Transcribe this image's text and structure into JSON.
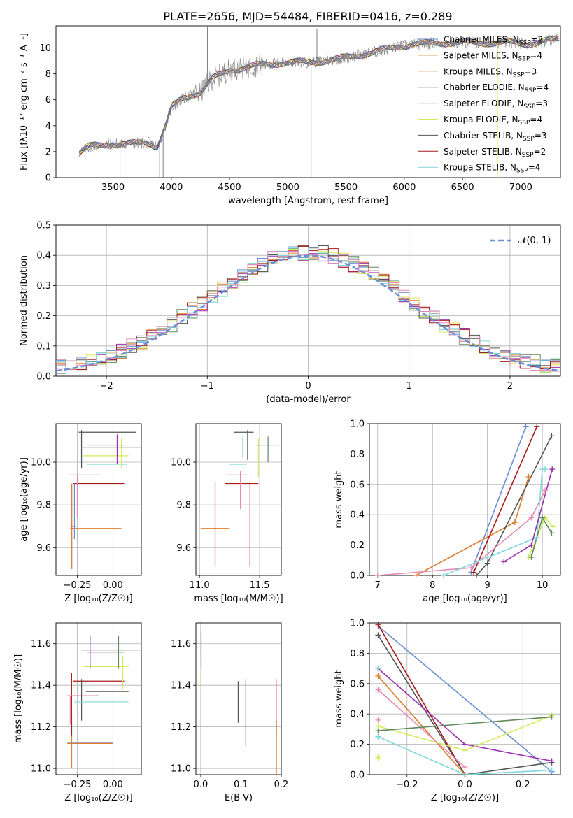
{
  "title": "PLATE=2656, MJD=54484, FIBERID=0416, z=0.289",
  "colors": {
    "Chabrier MILES": "#6a8fd8",
    "Salpeter MILES": "#e07b2a",
    "Kroupa MILES": "#e07b2a",
    "Chabrier ELODIE": "#5e8a5e",
    "Salpeter ELODIE": "#9b2fb0",
    "Kroupa ELODIE": "#d7ea5a",
    "Chabrier STELIB": "#555555",
    "Salpeter STELIB": "#a81a1a",
    "Kroupa STELIB": "#7fd6dc",
    "pink": "#e68ab5",
    "grid": "#b0b0b0",
    "spectrum": "#808080"
  },
  "chart_data": [
    {
      "id": "spectrum",
      "type": "line",
      "xlabel": "wavelength [Angstrom, rest frame]",
      "ylabel": "Flux [fλ10⁻¹⁷ erg cm⁻² s⁻¹ A⁻¹]",
      "xlim": [
        3010,
        7340
      ],
      "ylim": [
        0,
        11.7
      ],
      "xticks": [
        3500,
        4000,
        4500,
        5000,
        5500,
        6000,
        6500,
        7000
      ],
      "yticks": [
        0,
        2,
        4,
        6,
        8,
        10
      ],
      "grid": false,
      "legend_position": "top-right",
      "legend": [
        {
          "label": "Chabrier MILES, N",
          "sub": "SSP",
          "tail": "=2",
          "color_key": "Chabrier MILES"
        },
        {
          "label": "Salpeter MILES, N",
          "sub": "SSP",
          "tail": "=4",
          "color_key": "Salpeter MILES"
        },
        {
          "label": "Kroupa MILES, N",
          "sub": "SSP",
          "tail": "=3",
          "color_key": "Kroupa MILES"
        },
        {
          "label": "Chabrier ELODIE, N",
          "sub": "SSP",
          "tail": "=4",
          "color_key": "Chabrier ELODIE"
        },
        {
          "label": "Salpeter ELODIE, N",
          "sub": "SSP",
          "tail": "=3",
          "color_key": "Salpeter ELODIE"
        },
        {
          "label": "Kroupa ELODIE, N",
          "sub": "SSP",
          "tail": "=4",
          "color_key": "Kroupa ELODIE"
        },
        {
          "label": "Chabrier STELIB, N",
          "sub": "SSP",
          "tail": "=3",
          "color_key": "Chabrier STELIB"
        },
        {
          "label": "Salpeter STELIB, N",
          "sub": "SSP",
          "tail": "=2",
          "color_key": "Salpeter STELIB"
        },
        {
          "label": "Kroupa STELIB, N",
          "sub": "SSP",
          "tail": "=4",
          "color_key": "Kroupa STELIB"
        }
      ],
      "trend": {
        "x": [
          3210,
          3300,
          3500,
          3650,
          3800,
          3880,
          3950,
          4000,
          4100,
          4250,
          4350,
          4500,
          4700,
          5000,
          5200,
          5400,
          5700,
          6000,
          6300,
          6600,
          6900,
          7050,
          7330
        ],
        "y": [
          1.9,
          2.4,
          2.6,
          2.6,
          2.7,
          2.4,
          4.0,
          5.4,
          6.1,
          6.6,
          7.6,
          8.3,
          8.6,
          8.9,
          8.9,
          9.1,
          9.6,
          10.2,
          10.4,
          10.4,
          10.4,
          10.3,
          10.7
        ]
      },
      "noise_amplitude": 0.45,
      "spikes": [
        {
          "x": 3560,
          "y": 0
        },
        {
          "x": 3900,
          "y": 0
        },
        {
          "x": 3930,
          "y": 0
        },
        {
          "x": 4310,
          "y": 11.7
        },
        {
          "x": 5200,
          "y": 0
        },
        {
          "x": 5250,
          "y": 11.5
        },
        {
          "x": 6800,
          "y": 0
        }
      ]
    },
    {
      "id": "residuals",
      "type": "line",
      "xlabel": "(data-model)/error",
      "ylabel": "Normed distribution",
      "xlim": [
        -2.5,
        2.5
      ],
      "ylim": [
        0,
        0.5
      ],
      "xticks": [
        -2,
        -1,
        0,
        1,
        2
      ],
      "yticks": [
        0.0,
        0.1,
        0.2,
        0.3,
        0.4,
        0.5
      ],
      "grid": true,
      "legend_position": "top-right",
      "legend_label": "𝒩(0, 1)",
      "bin_width": 0.1,
      "series_order": [
        "Chabrier MILES",
        "Salpeter MILES",
        "Chabrier ELODIE",
        "Salpeter ELODIE",
        "Kroupa ELODIE",
        "Chabrier STELIB",
        "Salpeter STELIB",
        "Kroupa STELIB",
        "pink"
      ]
    },
    {
      "id": "age_vs_Z",
      "type": "scatter",
      "xlabel": "Z [log₁₀(Z/Z☉)]",
      "ylabel": "age  [log₁₀(age/yr)]",
      "xlim": [
        -0.4,
        0.2
      ],
      "ylim": [
        9.47,
        10.18
      ],
      "xticks": [
        -0.25,
        0.0
      ],
      "xticklabels": [
        "−0.25",
        "0.00"
      ],
      "yticks": [
        9.6,
        9.8,
        10.0
      ],
      "grid": true,
      "errorbars": [
        {
          "c": "Salpeter MILES",
          "x": -0.29,
          "xe": 0.0,
          "y": 9.7,
          "ye": 0.2
        },
        {
          "c": "Salpeter MILES",
          "x": -0.12,
          "xe": 0.18,
          "y": 9.69,
          "ye": 0.0
        },
        {
          "c": "Salpeter STELIB",
          "x": -0.28,
          "xe": 0.02,
          "y": 9.7,
          "ye": 0.2
        },
        {
          "c": "Salpeter STELIB",
          "x": -0.1,
          "xe": 0.18,
          "y": 9.9,
          "ye": 0.0
        },
        {
          "c": "Chabrier MILES",
          "x": -0.27,
          "xe": 0.0,
          "y": 9.77,
          "ye": 0.13
        },
        {
          "c": "pink",
          "x": -0.2,
          "xe": 0.11,
          "y": 9.94,
          "ye": 0.0
        },
        {
          "c": "pink",
          "x": -0.25,
          "xe": 0.0,
          "y": 9.84,
          "ye": 0.1
        },
        {
          "c": "Kroupa STELIB",
          "x": -0.04,
          "xe": 0.14,
          "y": 9.99,
          "ye": 0.0
        },
        {
          "c": "Kroupa STELIB",
          "x": -0.23,
          "xe": 0.0,
          "y": 10.06,
          "ye": 0.07
        },
        {
          "c": "Kroupa ELODIE",
          "x": -0.05,
          "xe": 0.16,
          "y": 10.03,
          "ye": 0.0
        },
        {
          "c": "Kroupa ELODIE",
          "x": 0.06,
          "xe": 0.0,
          "y": 10.04,
          "ye": 0.07
        },
        {
          "c": "Salpeter ELODIE",
          "x": -0.05,
          "xe": 0.13,
          "y": 10.08,
          "ye": 0.0
        },
        {
          "c": "Salpeter ELODIE",
          "x": 0.03,
          "xe": 0.0,
          "y": 10.06,
          "ye": 0.07
        },
        {
          "c": "Chabrier ELODIE",
          "x": 0.0,
          "xe": 0.22,
          "y": 10.07,
          "ye": 0.0
        },
        {
          "c": "Chabrier STELIB",
          "x": -0.04,
          "xe": 0.2,
          "y": 10.14,
          "ye": 0.0
        },
        {
          "c": "Chabrier STELIB",
          "x": -0.22,
          "xe": 0.0,
          "y": 10.06,
          "ye": 0.09
        }
      ]
    },
    {
      "id": "age_vs_mass",
      "type": "scatter",
      "xlabel": "mass [log₁₀(M/M☉)]",
      "ylabel": "",
      "xlim": [
        10.97,
        11.68
      ],
      "ylim": [
        9.47,
        10.18
      ],
      "xticks": [
        11.0,
        11.5
      ],
      "xticklabels": [
        "11.0",
        "11.5"
      ],
      "yticks": [
        9.6,
        9.8,
        10.0
      ],
      "grid": true,
      "errorbars": [
        {
          "c": "Salpeter MILES",
          "x": 11.13,
          "xe": 0.12,
          "y": 9.69,
          "ye": 0.0
        },
        {
          "c": "Salpeter STELIB",
          "x": 11.13,
          "xe": 0.0,
          "y": 9.71,
          "ye": 0.2
        },
        {
          "c": "Salpeter STELIB",
          "x": 11.42,
          "xe": 0.0,
          "y": 9.71,
          "ye": 0.2
        },
        {
          "c": "Salpeter STELIB",
          "x": 11.35,
          "xe": 0.14,
          "y": 9.9,
          "ye": 0.0
        },
        {
          "c": "pink",
          "x": 11.34,
          "xe": 0.0,
          "y": 9.87,
          "ye": 0.09
        },
        {
          "c": "pink",
          "x": 11.31,
          "xe": 0.09,
          "y": 9.94,
          "ye": 0.0
        },
        {
          "c": "Kroupa STELIB",
          "x": 11.32,
          "xe": 0.07,
          "y": 9.99,
          "ye": 0.0
        },
        {
          "c": "Kroupa STELIB",
          "x": 11.36,
          "xe": 0.0,
          "y": 10.07,
          "ye": 0.05
        },
        {
          "c": "Chabrier STELIB",
          "x": 11.37,
          "xe": 0.08,
          "y": 10.14,
          "ye": 0.0
        },
        {
          "c": "Chabrier STELIB",
          "x": 11.4,
          "xe": 0.0,
          "y": 10.08,
          "ye": 0.07
        },
        {
          "c": "Kroupa ELODIE",
          "x": 11.49,
          "xe": 0.0,
          "y": 10.02,
          "ye": 0.09
        },
        {
          "c": "Salpeter ELODIE",
          "x": 11.56,
          "xe": 0.09,
          "y": 10.08,
          "ye": 0.0
        },
        {
          "c": "Chabrier ELODIE",
          "x": 11.57,
          "xe": 0.0,
          "y": 10.06,
          "ye": 0.06
        }
      ]
    },
    {
      "id": "weight_vs_age",
      "type": "line",
      "xlabel": "age  [log₁₀(age/yr)]",
      "ylabel": "mass weight",
      "xlim": [
        6.85,
        10.33
      ],
      "ylim": [
        0,
        1.0
      ],
      "xticks": [
        7,
        8,
        9,
        10
      ],
      "yticks": [
        0.0,
        0.2,
        0.4,
        0.6,
        0.8,
        1.0
      ],
      "grid": true,
      "series": [
        {
          "c": "Chabrier MILES",
          "x": [
            8.7,
            9.7
          ],
          "y": [
            0.02,
            0.98
          ]
        },
        {
          "c": "Salpeter MILES",
          "x": [
            7.7,
            9.5,
            9.75
          ],
          "y": [
            0.0,
            0.35,
            0.65
          ]
        },
        {
          "c": "Salpeter STELIB",
          "x": [
            8.75,
            9.9
          ],
          "y": [
            0.02,
            0.98
          ]
        },
        {
          "c": "Chabrier STELIB",
          "x": [
            8.8,
            9.0,
            10.17
          ],
          "y": [
            0.0,
            0.08,
            0.92
          ]
        },
        {
          "c": "pink",
          "x": [
            7.0,
            8.7,
            9.8,
            10.05
          ],
          "y": [
            0.0,
            0.05,
            0.38,
            0.56
          ]
        },
        {
          "c": "Kroupa STELIB",
          "x": [
            8.2,
            9.9,
            10.0,
            10.05
          ],
          "y": [
            0.0,
            0.25,
            0.7,
            0.7
          ]
        },
        {
          "c": "Salpeter ELODIE",
          "x": [
            9.3,
            9.8,
            10.18
          ],
          "y": [
            0.09,
            0.2,
            0.7
          ]
        },
        {
          "c": "Kroupa ELODIE",
          "x": [
            9.75,
            10.05,
            10.2
          ],
          "y": [
            0.12,
            0.38,
            0.32
          ]
        },
        {
          "c": "Chabrier ELODIE",
          "x": [
            9.8,
            10.0,
            10.17
          ],
          "y": [
            0.12,
            0.38,
            0.28
          ]
        }
      ]
    },
    {
      "id": "mass_vs_Z",
      "type": "scatter",
      "xlabel": "Z [log₁₀(Z/Z☉)]",
      "ylabel": "mass [log₁₀(M/M☉)]",
      "xlim": [
        -0.4,
        0.2
      ],
      "ylim": [
        10.97,
        11.7
      ],
      "xticks": [
        -0.25,
        0.0
      ],
      "xticklabels": [
        "−0.25",
        "0.00"
      ],
      "yticks": [
        11.0,
        11.2,
        11.4,
        11.6
      ],
      "grid": true,
      "errorbars": [
        {
          "c": "Salpeter MILES",
          "x": -0.29,
          "xe": 0.0,
          "y": 11.1,
          "ye": 0.1
        },
        {
          "c": "Salpeter MILES",
          "x": -0.16,
          "xe": 0.16,
          "y": 11.12,
          "ye": 0.0
        },
        {
          "c": "Chabrier MILES",
          "x": -0.16,
          "xe": 0.16,
          "y": 11.125,
          "ye": 0.0
        },
        {
          "c": "Kroupa STELIB",
          "x": -0.28,
          "xe": 0.0,
          "y": 11.12,
          "ye": 0.13
        },
        {
          "c": "Salpeter STELIB",
          "x": -0.29,
          "xe": 0.0,
          "y": 11.31,
          "ye": 0.15
        },
        {
          "c": "pink",
          "x": -0.3,
          "xe": 0.0,
          "y": 11.28,
          "ye": 0.07
        },
        {
          "c": "pink",
          "x": -0.21,
          "xe": 0.11,
          "y": 11.35,
          "ye": 0.0
        },
        {
          "c": "Salpeter STELIB",
          "x": -0.1,
          "xe": 0.18,
          "y": 11.42,
          "ye": 0.0
        },
        {
          "c": "Chabrier STELIB",
          "x": -0.22,
          "xe": 0.0,
          "y": 11.33,
          "ye": 0.1
        },
        {
          "c": "Chabrier STELIB",
          "x": -0.04,
          "xe": 0.15,
          "y": 11.37,
          "ye": 0.0
        },
        {
          "c": "Kroupa STELIB",
          "x": -0.08,
          "xe": 0.19,
          "y": 11.32,
          "ye": 0.0
        },
        {
          "c": "Kroupa ELODIE",
          "x": -0.05,
          "xe": 0.16,
          "y": 11.49,
          "ye": 0.0
        },
        {
          "c": "Kroupa ELODIE",
          "x": 0.07,
          "xe": 0.0,
          "y": 11.46,
          "ye": 0.08
        },
        {
          "c": "Salpeter ELODIE",
          "x": -0.05,
          "xe": 0.13,
          "y": 11.56,
          "ye": 0.0
        },
        {
          "c": "Salpeter ELODIE",
          "x": -0.16,
          "xe": 0.0,
          "y": 11.56,
          "ye": 0.08
        },
        {
          "c": "Chabrier ELODIE",
          "x": 0.0,
          "xe": 0.22,
          "y": 11.57,
          "ye": 0.0
        },
        {
          "c": "Chabrier ELODIE",
          "x": 0.04,
          "xe": 0.0,
          "y": 11.56,
          "ye": 0.08
        }
      ]
    },
    {
      "id": "mass_vs_ebv",
      "type": "scatter",
      "xlabel": "E(B-V)",
      "ylabel": "",
      "xlim": [
        -0.012,
        0.2
      ],
      "ylim": [
        10.97,
        11.7
      ],
      "xticks": [
        0.0,
        0.1,
        0.2
      ],
      "xticklabels": [
        "0.0",
        "0.1",
        "0.2"
      ],
      "yticks": [
        11.0,
        11.2,
        11.4,
        11.6
      ],
      "grid": true,
      "errorbars": [
        {
          "c": "Salpeter ELODIE",
          "x": 0.001,
          "xe": 0.0,
          "y": 11.57,
          "ye": 0.09
        },
        {
          "c": "Kroupa ELODIE",
          "x": 0.001,
          "xe": 0.0,
          "y": 11.45,
          "ye": 0.08
        },
        {
          "c": "Chabrier STELIB",
          "x": 0.093,
          "xe": 0.0,
          "y": 11.32,
          "ye": 0.1
        },
        {
          "c": "Salpeter STELIB",
          "x": 0.112,
          "xe": 0.0,
          "y": 11.27,
          "ye": 0.16
        },
        {
          "c": "pink",
          "x": 0.188,
          "xe": 0.0,
          "y": 11.3,
          "ye": 0.13
        },
        {
          "c": "Salpeter MILES",
          "x": 0.188,
          "xe": 0.0,
          "y": 11.1,
          "ye": 0.13
        }
      ]
    },
    {
      "id": "weight_vs_Z",
      "type": "line",
      "xlabel": "Z [log₁₀(Z/Z☉)]",
      "ylabel": "mass weight",
      "xlim": [
        -0.33,
        0.33
      ],
      "ylim": [
        0,
        1.0
      ],
      "xticks": [
        -0.2,
        0.0,
        0.2
      ],
      "xticklabels": [
        "−0.2",
        "0.0",
        "0.2"
      ],
      "yticks": [
        0.0,
        0.2,
        0.4,
        0.6,
        0.8,
        1.0
      ],
      "grid": true,
      "series": [
        {
          "c": "Chabrier MILES",
          "x": [
            -0.3,
            0.3
          ],
          "y": [
            0.98,
            0.02
          ]
        },
        {
          "c": "Salpeter STELIB",
          "x": [
            -0.3,
            0.0
          ],
          "y": [
            0.99,
            0.0
          ]
        },
        {
          "c": "Chabrier STELIB",
          "x": [
            -0.3,
            0.0,
            0.3
          ],
          "y": [
            0.92,
            0.0,
            0.08
          ]
        },
        {
          "c": "Salpeter MILES",
          "x": [
            -0.3,
            0.0
          ],
          "y": [
            0.65,
            0.0
          ]
        },
        {
          "c": "Kroupa STELIB",
          "x": [
            -0.3,
            0.0,
            0.3
          ],
          "y": [
            0.25,
            0.0,
            0.03
          ]
        },
        {
          "c": "pink",
          "x": [
            -0.3,
            0.0
          ],
          "y": [
            0.56,
            0.05
          ]
        },
        {
          "c": "Salpeter ELODIE",
          "x": [
            -0.3,
            0.0,
            0.3
          ],
          "y": [
            0.7,
            0.2,
            0.09
          ]
        },
        {
          "c": "Kroupa ELODIE",
          "x": [
            -0.3,
            0.0,
            0.3
          ],
          "y": [
            0.32,
            0.16,
            0.39
          ]
        },
        {
          "c": "Chabrier ELODIE",
          "x": [
            -0.3,
            0.3
          ],
          "y": [
            0.29,
            0.38
          ]
        }
      ],
      "stacked_markers": [
        {
          "c": "Kroupa ELODIE",
          "x": -0.3,
          "y": [
            0.11,
            0.12,
            0.32
          ]
        },
        {
          "c": "pink",
          "x": -0.3,
          "y": [
            0.36,
            0.56
          ]
        },
        {
          "c": "Kroupa STELIB",
          "x": -0.3,
          "y": [
            0.7,
            0.25
          ]
        }
      ]
    }
  ]
}
